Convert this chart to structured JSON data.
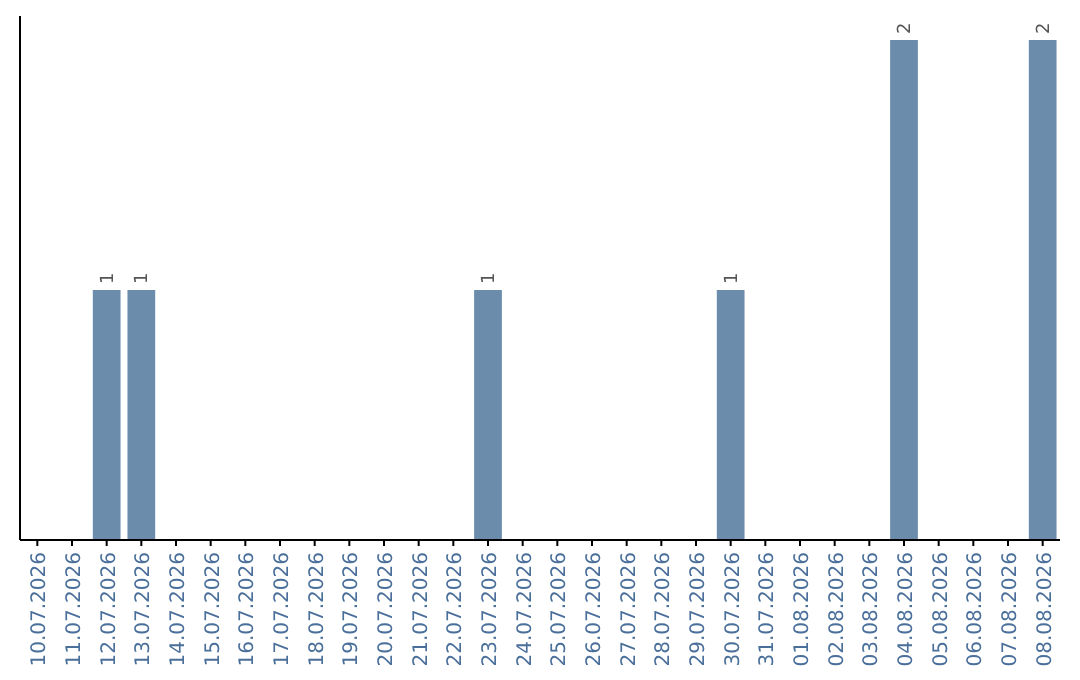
{
  "chart_data": {
    "type": "bar",
    "categories": [
      "10.07.2026",
      "11.07.2026",
      "12.07.2026",
      "13.07.2026",
      "14.07.2026",
      "15.07.2026",
      "16.07.2026",
      "17.07.2026",
      "18.07.2026",
      "19.07.2026",
      "20.07.2026",
      "21.07.2026",
      "22.07.2026",
      "23.07.2026",
      "24.07.2026",
      "25.07.2026",
      "26.07.2026",
      "27.07.2026",
      "28.07.2026",
      "29.07.2026",
      "30.07.2026",
      "31.07.2026",
      "01.08.2026",
      "02.08.2026",
      "03.08.2026",
      "04.08.2026",
      "05.08.2026",
      "06.08.2026",
      "07.08.2026",
      "08.08.2026"
    ],
    "values": [
      0,
      0,
      1,
      1,
      0,
      0,
      0,
      0,
      0,
      0,
      0,
      0,
      0,
      1,
      0,
      0,
      0,
      0,
      0,
      0,
      1,
      0,
      0,
      0,
      0,
      2,
      0,
      0,
      0,
      2
    ],
    "value_labels": [
      null,
      null,
      "1",
      "1",
      null,
      null,
      null,
      null,
      null,
      null,
      null,
      null,
      null,
      "1",
      null,
      null,
      null,
      null,
      null,
      null,
      "1",
      null,
      null,
      null,
      null,
      "2",
      null,
      null,
      null,
      "2"
    ],
    "color": "#6b8cab"
  }
}
